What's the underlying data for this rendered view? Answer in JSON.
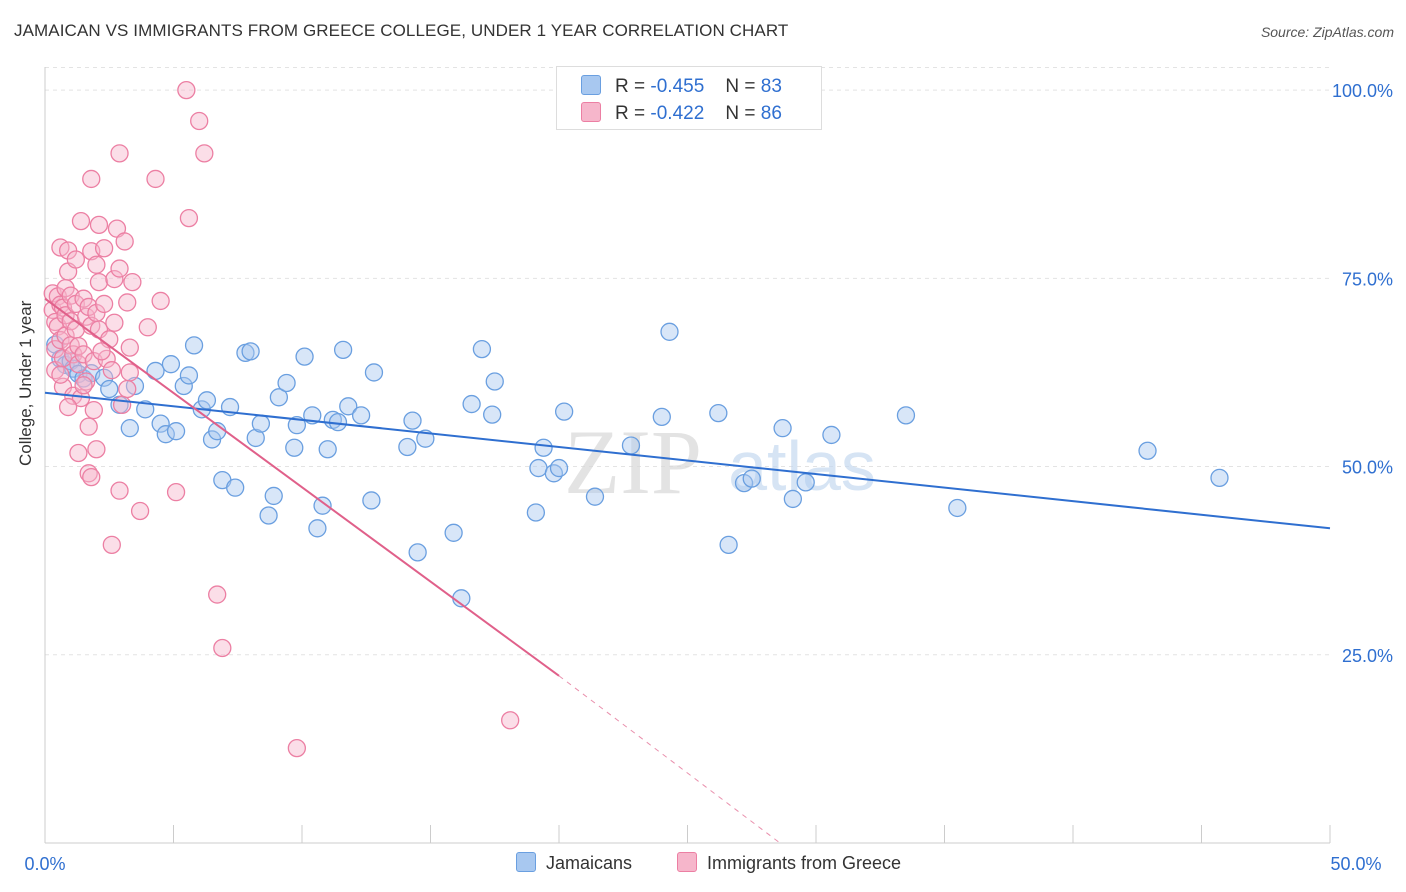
{
  "header": {
    "title": "JAMAICAN VS IMMIGRANTS FROM GREECE COLLEGE, UNDER 1 YEAR CORRELATION CHART",
    "source": "Source: ZipAtlas.com"
  },
  "legend": {
    "rows": [
      {
        "r_label": "R =",
        "r_value": "-0.455",
        "n_label": "N =",
        "n_value": "83"
      },
      {
        "r_label": "R =",
        "r_value": "-0.422",
        "n_label": "N =",
        "n_value": "86"
      }
    ],
    "bottom": [
      "Jamaicans",
      "Immigrants from Greece"
    ]
  },
  "watermark": {
    "zip": "ZIP",
    "atlas": "atlas"
  },
  "colors": {
    "blue_fill": "#a8c8f0",
    "blue_stroke": "#6a9fe0",
    "blue_line": "#2f6fd0",
    "pink_fill": "#f6b6cb",
    "pink_stroke": "#ec7fa3",
    "pink_line": "#e0608a",
    "tick_text": "#2f6fd0",
    "grid": "#e3e3e3"
  },
  "chart_data": {
    "type": "scatter",
    "title": "JAMAICAN VS IMMIGRANTS FROM GREECE COLLEGE, UNDER 1 YEAR CORRELATION CHART",
    "xlabel": "",
    "ylabel": "College, Under 1 year",
    "xlim": [
      0,
      50
    ],
    "ylim": [
      0,
      104
    ],
    "x_tick_labels": [
      "0.0%",
      "50.0%"
    ],
    "y_ticks": [
      25,
      50,
      75,
      100
    ],
    "y_tick_labels": [
      "25.0%",
      "50.0%",
      "75.0%",
      "100.0%"
    ],
    "grid": true,
    "legend_position": "top-center",
    "series": [
      {
        "name": "Jamaicans",
        "color": "#6a9fe0",
        "R": -0.455,
        "N": 83,
        "trend": {
          "x": [
            0,
            50
          ],
          "y": [
            59.8,
            41.8
          ]
        },
        "points": [
          [
            0.4,
            66.2
          ],
          [
            0.6,
            64.3
          ],
          [
            0.8,
            63.5
          ],
          [
            1.0,
            64.0
          ],
          [
            1.1,
            63.0
          ],
          [
            1.3,
            62.3
          ],
          [
            1.5,
            61.7
          ],
          [
            1.8,
            62.4
          ],
          [
            2.3,
            61.8
          ],
          [
            2.5,
            60.3
          ],
          [
            2.9,
            58.2
          ],
          [
            3.3,
            55.1
          ],
          [
            3.5,
            60.7
          ],
          [
            3.9,
            57.6
          ],
          [
            4.3,
            62.7
          ],
          [
            4.5,
            55.7
          ],
          [
            4.7,
            54.3
          ],
          [
            4.9,
            63.6
          ],
          [
            5.1,
            54.7
          ],
          [
            5.4,
            60.7
          ],
          [
            5.6,
            62.1
          ],
          [
            5.8,
            66.1
          ],
          [
            6.1,
            57.6
          ],
          [
            6.3,
            58.8
          ],
          [
            6.5,
            53.6
          ],
          [
            6.7,
            54.7
          ],
          [
            6.9,
            48.2
          ],
          [
            7.2,
            57.9
          ],
          [
            7.4,
            47.2
          ],
          [
            7.8,
            65.1
          ],
          [
            8.0,
            65.3
          ],
          [
            8.2,
            53.8
          ],
          [
            8.4,
            55.7
          ],
          [
            8.7,
            43.5
          ],
          [
            8.9,
            46.1
          ],
          [
            9.1,
            59.2
          ],
          [
            9.4,
            61.1
          ],
          [
            9.7,
            52.5
          ],
          [
            9.8,
            55.5
          ],
          [
            10.1,
            64.6
          ],
          [
            10.4,
            56.8
          ],
          [
            10.6,
            41.8
          ],
          [
            10.8,
            44.8
          ],
          [
            11.0,
            52.3
          ],
          [
            11.2,
            56.2
          ],
          [
            11.4,
            55.9
          ],
          [
            11.6,
            65.5
          ],
          [
            11.8,
            58.0
          ],
          [
            12.3,
            56.8
          ],
          [
            12.7,
            45.5
          ],
          [
            12.8,
            62.5
          ],
          [
            14.1,
            52.6
          ],
          [
            14.3,
            56.1
          ],
          [
            14.5,
            38.6
          ],
          [
            14.8,
            53.7
          ],
          [
            15.9,
            41.2
          ],
          [
            16.2,
            32.5
          ],
          [
            16.6,
            58.3
          ],
          [
            17.0,
            65.6
          ],
          [
            17.4,
            56.9
          ],
          [
            17.5,
            61.3
          ],
          [
            19.1,
            43.9
          ],
          [
            19.2,
            49.8
          ],
          [
            19.4,
            52.5
          ],
          [
            19.8,
            49.1
          ],
          [
            20.0,
            49.8
          ],
          [
            20.2,
            57.3
          ],
          [
            21.4,
            46.0
          ],
          [
            22.8,
            52.8
          ],
          [
            24.0,
            56.6
          ],
          [
            24.3,
            67.9
          ],
          [
            26.2,
            57.1
          ],
          [
            26.6,
            39.6
          ],
          [
            27.2,
            47.8
          ],
          [
            27.5,
            48.4
          ],
          [
            28.7,
            55.1
          ],
          [
            29.1,
            45.7
          ],
          [
            29.6,
            47.9
          ],
          [
            30.6,
            54.2
          ],
          [
            33.5,
            56.8
          ],
          [
            35.5,
            44.5
          ],
          [
            42.9,
            52.1
          ],
          [
            45.7,
            48.5
          ]
        ]
      },
      {
        "name": "Immigrants from Greece",
        "color": "#ec7fa3",
        "R": -0.422,
        "N": 86,
        "trend": {
          "x": [
            0,
            20
          ],
          "y": [
            72.3,
            22.2
          ]
        },
        "trend_dashed": {
          "x": [
            20,
            28.6
          ],
          "y": [
            22.2,
            0
          ]
        },
        "points": [
          [
            0.3,
            73.0
          ],
          [
            0.3,
            70.8
          ],
          [
            0.4,
            69.2
          ],
          [
            0.4,
            65.6
          ],
          [
            0.4,
            62.8
          ],
          [
            0.5,
            72.6
          ],
          [
            0.5,
            68.6
          ],
          [
            0.6,
            79.1
          ],
          [
            0.6,
            71.5
          ],
          [
            0.6,
            66.8
          ],
          [
            0.7,
            71.1
          ],
          [
            0.7,
            64.4
          ],
          [
            0.7,
            60.6
          ],
          [
            0.8,
            70.1
          ],
          [
            0.8,
            73.7
          ],
          [
            0.8,
            67.4
          ],
          [
            0.9,
            78.7
          ],
          [
            0.9,
            75.9
          ],
          [
            1.0,
            72.7
          ],
          [
            1.0,
            69.3
          ],
          [
            1.0,
            66.1
          ],
          [
            1.1,
            64.9
          ],
          [
            1.1,
            59.4
          ],
          [
            1.2,
            77.5
          ],
          [
            1.2,
            71.6
          ],
          [
            1.2,
            68.2
          ],
          [
            1.3,
            51.8
          ],
          [
            1.3,
            63.6
          ],
          [
            1.3,
            66.0
          ],
          [
            1.4,
            82.6
          ],
          [
            1.4,
            59.1
          ],
          [
            1.5,
            72.3
          ],
          [
            1.5,
            64.9
          ],
          [
            1.6,
            69.9
          ],
          [
            1.6,
            61.3
          ],
          [
            1.7,
            71.2
          ],
          [
            1.7,
            55.3
          ],
          [
            1.7,
            49.1
          ],
          [
            1.8,
            78.6
          ],
          [
            1.8,
            68.7
          ],
          [
            1.8,
            88.2
          ],
          [
            1.9,
            64.0
          ],
          [
            1.9,
            57.5
          ],
          [
            2.0,
            76.8
          ],
          [
            2.0,
            70.4
          ],
          [
            2.0,
            52.3
          ],
          [
            2.1,
            82.1
          ],
          [
            2.1,
            74.5
          ],
          [
            2.1,
            68.2
          ],
          [
            2.3,
            79.0
          ],
          [
            2.3,
            71.6
          ],
          [
            2.4,
            64.3
          ],
          [
            2.5,
            66.9
          ],
          [
            2.6,
            62.8
          ],
          [
            2.7,
            74.9
          ],
          [
            2.7,
            69.1
          ],
          [
            2.8,
            81.6
          ],
          [
            2.9,
            76.3
          ],
          [
            2.9,
            46.8
          ],
          [
            2.9,
            91.6
          ],
          [
            3.0,
            58.2
          ],
          [
            3.1,
            79.9
          ],
          [
            3.2,
            71.8
          ],
          [
            3.3,
            65.8
          ],
          [
            3.3,
            62.5
          ],
          [
            3.4,
            74.5
          ],
          [
            3.7,
            44.1
          ],
          [
            4.0,
            68.5
          ],
          [
            4.3,
            88.2
          ],
          [
            4.5,
            72.0
          ],
          [
            5.1,
            46.6
          ],
          [
            5.5,
            100.0
          ],
          [
            5.6,
            83.0
          ],
          [
            6.0,
            95.9
          ],
          [
            6.2,
            91.6
          ],
          [
            6.7,
            33.0
          ],
          [
            6.9,
            25.9
          ],
          [
            9.8,
            12.6
          ],
          [
            3.2,
            60.3
          ],
          [
            18.1,
            16.3
          ],
          [
            2.6,
            39.6
          ],
          [
            1.8,
            48.6
          ],
          [
            0.6,
            62.2
          ],
          [
            1.5,
            60.8
          ],
          [
            2.2,
            65.3
          ],
          [
            0.9,
            57.9
          ]
        ]
      }
    ]
  }
}
